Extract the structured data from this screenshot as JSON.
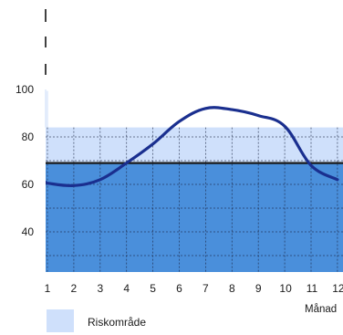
{
  "chart_data": {
    "type": "line",
    "x": [
      1,
      2,
      3,
      4,
      5,
      6,
      7,
      8,
      9,
      10,
      11,
      12
    ],
    "series": [
      {
        "values": [
          60.5,
          59.5,
          62,
          69,
          77,
          86.5,
          92,
          91.5,
          89,
          84.5,
          68,
          62
        ]
      }
    ],
    "threshold": 69,
    "risk_band": {
      "from": 69,
      "to": 84
    },
    "ylim": [
      20,
      120
    ],
    "xlim": [
      1,
      12
    ],
    "ytick_labels": [
      "40",
      "60",
      "80",
      "100"
    ],
    "xtick_labels": [
      "1",
      "2",
      "3",
      "4",
      "5",
      "6",
      "7",
      "8",
      "9",
      "10",
      "11",
      "12"
    ],
    "xlabel": "Månad",
    "ylabel": "",
    "grid": true,
    "legend": {
      "label": "Riskområde",
      "position": "bottom-left"
    },
    "colors": {
      "dark_fill": "#4a8fdb",
      "light_fill": "#cfe0fb",
      "line": "#1a2f8f",
      "threshold": "#1a1a1a"
    }
  }
}
